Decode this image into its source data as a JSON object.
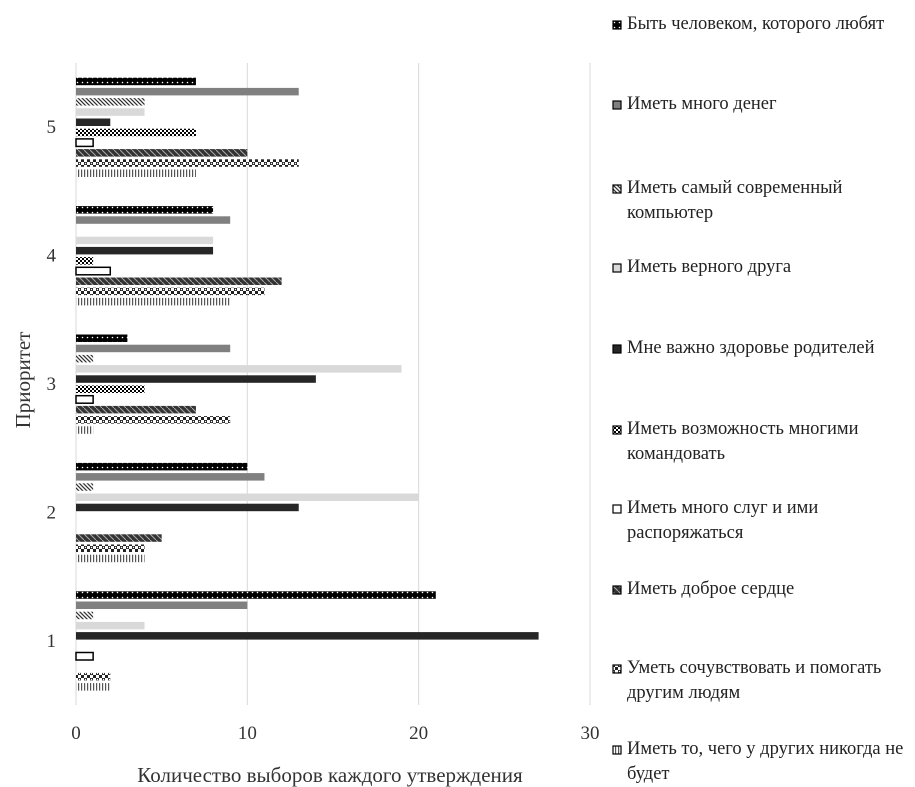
{
  "chart_data": {
    "type": "barh",
    "xlabel": "Количество выборов каждого утверждения",
    "ylabel": "Приоритет",
    "categories": [
      "1",
      "2",
      "3",
      "4",
      "5"
    ],
    "xlim": [
      0,
      30
    ],
    "xticks": [
      0,
      10,
      20,
      30
    ],
    "grid": true,
    "series": [
      {
        "name": "Быть человеком, которого любят",
        "color": "#000000",
        "values": [
          21,
          10,
          3,
          8,
          7
        ]
      },
      {
        "name": "Иметь много денег",
        "color": "#808080",
        "values": [
          10,
          11,
          9,
          9,
          13
        ]
      },
      {
        "name": "Иметь самый современный компьютер",
        "color": "#404040",
        "values": [
          1,
          1,
          1,
          0,
          4
        ]
      },
      {
        "name": "Иметь верного друга",
        "color": "#d9d9d9",
        "values": [
          4,
          20,
          19,
          8,
          4
        ]
      },
      {
        "name": "Мне важно здоровье родителей",
        "color": "#262626",
        "values": [
          27,
          13,
          14,
          8,
          2
        ]
      },
      {
        "name": "Иметь возможность многими командовать",
        "color": "#000000",
        "values": [
          0,
          0,
          4,
          1,
          7
        ]
      },
      {
        "name": "Иметь много слуг и ими распоряжаться",
        "color": "#ffffff",
        "values": [
          1,
          0,
          1,
          2,
          1
        ]
      },
      {
        "name": "Иметь доброе сердце",
        "color": "#333333",
        "values": [
          0,
          5,
          7,
          12,
          10
        ]
      },
      {
        "name": "Уметь сочувствовать и помогать другим людям",
        "color": "#000000",
        "values": [
          2,
          4,
          9,
          11,
          13
        ]
      },
      {
        "name": "Иметь то, чего у других никогда не будет",
        "color": "#ffffff",
        "values": [
          2,
          4,
          1,
          9,
          7
        ]
      }
    ]
  }
}
